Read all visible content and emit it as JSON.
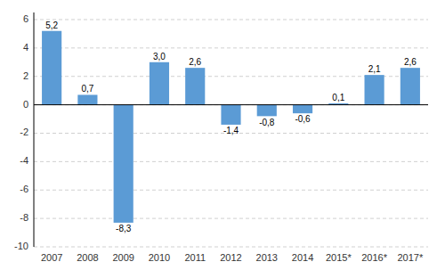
{
  "chart_data": {
    "type": "bar",
    "categories": [
      "2007",
      "2008",
      "2009",
      "2010",
      "2011",
      "2012",
      "2013",
      "2014",
      "2015*",
      "2016*",
      "2017*"
    ],
    "values": [
      5.2,
      0.7,
      -8.3,
      3.0,
      2.6,
      -1.4,
      -0.8,
      -0.6,
      0.1,
      2.1,
      2.6
    ],
    "value_labels": [
      "5,2",
      "0,7",
      "-8,3",
      "3,0",
      "2,6",
      "-1,4",
      "-0,8",
      "-0,6",
      "0,1",
      "2,1",
      "2,6"
    ],
    "data_labels": true,
    "color": "#5b9bd5",
    "ylim": [
      -10,
      6.5
    ],
    "yticks": [
      -10,
      -8,
      -6,
      -4,
      -2,
      0,
      2,
      4,
      6
    ],
    "grid": true
  }
}
